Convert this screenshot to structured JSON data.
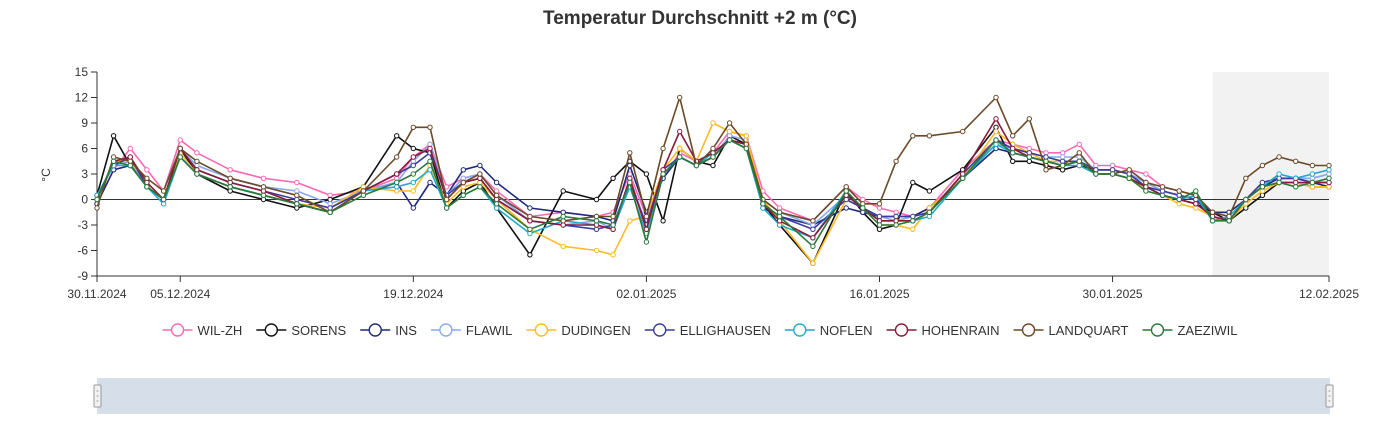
{
  "chart_data": {
    "type": "line",
    "title": "Temperatur Durchschnitt +2 m (°C)",
    "xlabel": "",
    "ylabel": "°C",
    "ylim": [
      -9,
      15
    ],
    "yticks": [
      -9,
      -6,
      -3,
      0,
      3,
      6,
      9,
      12,
      15
    ],
    "x_start": "30.11.2024",
    "x_end": "12.02.2025",
    "x_tick_labels": [
      {
        "day": 0,
        "label": "30.11.2024"
      },
      {
        "day": 5,
        "label": "05.12.2024"
      },
      {
        "day": 19,
        "label": "19.12.2024"
      },
      {
        "day": 33,
        "label": "02.01.2025"
      },
      {
        "day": 47,
        "label": "16.01.2025"
      },
      {
        "day": 61,
        "label": "30.01.2025"
      },
      {
        "day": 74,
        "label": "12.02.2025"
      }
    ],
    "forecast_range_days": [
      67,
      74
    ],
    "sample_days": [
      0,
      1,
      2,
      3,
      4,
      5,
      6,
      8,
      10,
      12,
      14,
      16,
      18,
      19,
      20,
      21,
      22,
      23,
      24,
      26,
      28,
      30,
      31,
      32,
      33,
      34,
      35,
      36,
      37,
      38,
      39,
      40,
      41,
      43,
      45,
      46,
      47,
      48,
      49,
      50,
      52,
      54,
      55,
      56,
      57,
      58,
      59,
      60,
      61,
      62,
      63,
      64,
      65,
      66,
      67,
      68,
      69,
      70,
      71,
      72,
      73,
      74
    ],
    "series": [
      {
        "name": "WIL-ZH",
        "color": "#ff69b4",
        "values": [
          -0.5,
          3.5,
          6,
          3.5,
          1,
          7,
          5.5,
          3.5,
          2.5,
          2,
          0.5,
          1,
          2.5,
          5,
          6.5,
          1.5,
          2.5,
          3,
          1,
          -2,
          -1.5,
          -2,
          -1.5,
          3,
          -2,
          2.5,
          5.5,
          4.5,
          5.5,
          8,
          7.5,
          1,
          -1,
          -2.5,
          1.5,
          0,
          -1,
          -1.5,
          -2,
          -1,
          3.5,
          7,
          6.5,
          6,
          5.5,
          5.5,
          6.5,
          4,
          4,
          3.5,
          3,
          1.5,
          1,
          0.5,
          -1.5,
          -2.5,
          0,
          2,
          2.5,
          2.5,
          2.5,
          3
        ]
      },
      {
        "name": "SORENS",
        "color": "#111111",
        "values": [
          0.5,
          7.5,
          4,
          1.5,
          0,
          6,
          3,
          1,
          0,
          -1,
          0,
          1.5,
          7.5,
          6,
          5.5,
          -1,
          1,
          2,
          -1,
          -6.5,
          1,
          0,
          2.5,
          4.5,
          3,
          -2.5,
          6,
          4.5,
          4,
          7.5,
          6.5,
          -0.5,
          -3,
          -7.5,
          1,
          -1.5,
          -3.5,
          -3,
          2,
          1,
          3.5,
          8.5,
          4.5,
          4.5,
          4,
          3.5,
          4,
          3.5,
          3.5,
          3,
          1.5,
          0.5,
          0,
          -0.5,
          -1.5,
          -2.5,
          -1,
          0.5,
          2,
          2,
          1.5,
          1.5
        ]
      },
      {
        "name": "INS",
        "color": "#1f2a7a",
        "values": [
          -0.5,
          3.5,
          4,
          2,
          0,
          5,
          3,
          1.5,
          0.5,
          -0.5,
          -1.5,
          1,
          2,
          -1,
          2,
          0.5,
          3.5,
          4,
          2,
          -1,
          -1.5,
          -2,
          -2.5,
          4,
          -1.5,
          2.5,
          5,
          4,
          5,
          7,
          6.5,
          -1,
          -2,
          -3,
          -1,
          -1.5,
          -2,
          -2,
          -2,
          -1,
          2.5,
          6,
          5.5,
          5,
          4.5,
          4.5,
          4.5,
          3.5,
          3.5,
          3,
          2,
          1,
          0.5,
          0,
          -1.5,
          -1.5,
          0,
          1.5,
          2.5,
          2.5,
          2,
          1.5
        ]
      },
      {
        "name": "FLAWIL",
        "color": "#88aaee",
        "values": [
          0.5,
          4,
          4.5,
          1.5,
          0,
          6,
          4,
          2.5,
          1.5,
          1,
          -0.5,
          1,
          2,
          4.5,
          6.5,
          0.5,
          2.5,
          3,
          0.5,
          -2.5,
          -3,
          -2.5,
          -3.5,
          2.5,
          -3,
          3,
          5,
          4,
          5,
          7.5,
          7,
          0,
          -1.5,
          -3,
          0.5,
          -1,
          -2,
          -2.5,
          -2,
          -1.5,
          3,
          6.5,
          6,
          5.5,
          5,
          5,
          5,
          3.5,
          3.5,
          3,
          2,
          1,
          0.5,
          0,
          -2,
          -2.5,
          0,
          2,
          2.5,
          2.5,
          2.5,
          3
        ]
      },
      {
        "name": "DUDINGEN",
        "color": "#ffbb22",
        "values": [
          0,
          4.5,
          4.5,
          2,
          0,
          5.5,
          3,
          1.5,
          0.5,
          -0.5,
          -1,
          1.5,
          1,
          1,
          4,
          -0.5,
          1.5,
          2,
          0,
          -3.5,
          -5.5,
          -6,
          -6.5,
          -2.5,
          -2,
          3.5,
          6,
          4.5,
          9,
          8,
          7.5,
          0,
          -2.5,
          -7.5,
          0,
          -1,
          -3,
          -3,
          -3.5,
          -1,
          2.5,
          8,
          6.5,
          5.5,
          4.5,
          4.5,
          4.5,
          3.5,
          3.5,
          3,
          1,
          0.5,
          -0.5,
          -1,
          -2,
          -2.5,
          -0.5,
          1,
          2,
          2,
          1.5,
          1.5
        ]
      },
      {
        "name": "ELLIGHAUSEN",
        "color": "#3c3c9e",
        "values": [
          0.5,
          4,
          5,
          1.5,
          0,
          6,
          3.5,
          2,
          1,
          0,
          -1,
          1,
          3,
          4,
          5.5,
          0.5,
          2,
          2.5,
          0,
          -2.5,
          -3,
          -3.5,
          -3,
          2,
          -3,
          3.5,
          5,
          4,
          5,
          7,
          6.5,
          -0.5,
          -2,
          -3.5,
          0,
          -1,
          -2,
          -2,
          -2,
          -1.5,
          3,
          7,
          6,
          5.5,
          5,
          4.5,
          4.5,
          3.5,
          3.5,
          3,
          1.5,
          1,
          0.5,
          0,
          -2,
          -2.5,
          0,
          2,
          2.5,
          2.5,
          2,
          2
        ]
      },
      {
        "name": "NOFLEN",
        "color": "#22aacc",
        "values": [
          0.5,
          4,
          4,
          1.5,
          -0.5,
          5,
          3,
          1.5,
          0.5,
          -0.5,
          -1.5,
          1,
          1.5,
          2,
          3.5,
          -1,
          0.5,
          1.5,
          -1,
          -4,
          -2.5,
          -3,
          -3.5,
          1.5,
          -4,
          3,
          5,
          4,
          5.5,
          7,
          6,
          -1,
          -3,
          -4.5,
          1,
          -1,
          -2.5,
          -2.5,
          -2.5,
          -2,
          2.5,
          6.5,
          5.5,
          5,
          4.5,
          4,
          4,
          3,
          3,
          2.5,
          1.5,
          0.5,
          0,
          0.5,
          -2.5,
          -2,
          0,
          1.5,
          3,
          2.5,
          3,
          3.5
        ]
      },
      {
        "name": "HOHENRAIN",
        "color": "#8a1a3a",
        "values": [
          0,
          4.5,
          5,
          2,
          0,
          6,
          3.5,
          2,
          1,
          -0.5,
          -1.5,
          1,
          3,
          5,
          6,
          0,
          2,
          2.5,
          0,
          -2.5,
          -3,
          -3,
          -3.5,
          2.5,
          -3.5,
          3.5,
          8,
          4.5,
          5.5,
          7,
          6.5,
          -0.5,
          -2.5,
          -4.5,
          0.5,
          -1,
          -2.5,
          -2.5,
          -2.5,
          -1.5,
          3,
          9.5,
          6,
          5,
          4.5,
          4,
          4.5,
          3,
          3,
          2.5,
          1.5,
          0.5,
          0,
          -0.5,
          -2,
          -2.5,
          0,
          1.5,
          2,
          2,
          2,
          2
        ]
      },
      {
        "name": "LANDQUART",
        "color": "#6b4a28",
        "values": [
          -1,
          5,
          4.5,
          2.5,
          1,
          6,
          4.5,
          2.5,
          1.5,
          0.5,
          -1.5,
          1,
          5,
          8.5,
          8.5,
          0,
          2,
          3,
          0.5,
          -2,
          -2.5,
          -2,
          -2,
          5.5,
          -2,
          6,
          12,
          4,
          6,
          9,
          6.5,
          0,
          -1.5,
          -2.5,
          1.5,
          -0.5,
          -0.5,
          4.5,
          7.5,
          7.5,
          8,
          12,
          7.5,
          9.5,
          3.5,
          4,
          5.5,
          3,
          3,
          3.5,
          2,
          1.5,
          1,
          0.5,
          -1.5,
          -2,
          2.5,
          4,
          5,
          4.5,
          4,
          4
        ]
      },
      {
        "name": "ZAEZIWIL",
        "color": "#2a7a3a",
        "values": [
          0,
          4.5,
          4,
          1.5,
          0,
          5,
          3,
          1.5,
          0.5,
          -0.5,
          -1.5,
          0.5,
          2,
          3,
          4.5,
          -1,
          0.5,
          1.5,
          -0.5,
          -3.5,
          -2,
          -2.5,
          -3,
          2,
          -5,
          3,
          5,
          4,
          5,
          7,
          6,
          -0.5,
          -2,
          -5.5,
          1,
          -1,
          -3,
          -3,
          -2.5,
          -1.5,
          2.5,
          7,
          5.5,
          5,
          4.5,
          4,
          4.5,
          3,
          3,
          2.5,
          1,
          0.5,
          0,
          1,
          -2.5,
          -2.5,
          0,
          1.5,
          2,
          1.5,
          2,
          2.5
        ]
      }
    ]
  },
  "navigator": {
    "left_handle": "navigator-left-handle",
    "right_handle": "navigator-right-handle"
  }
}
